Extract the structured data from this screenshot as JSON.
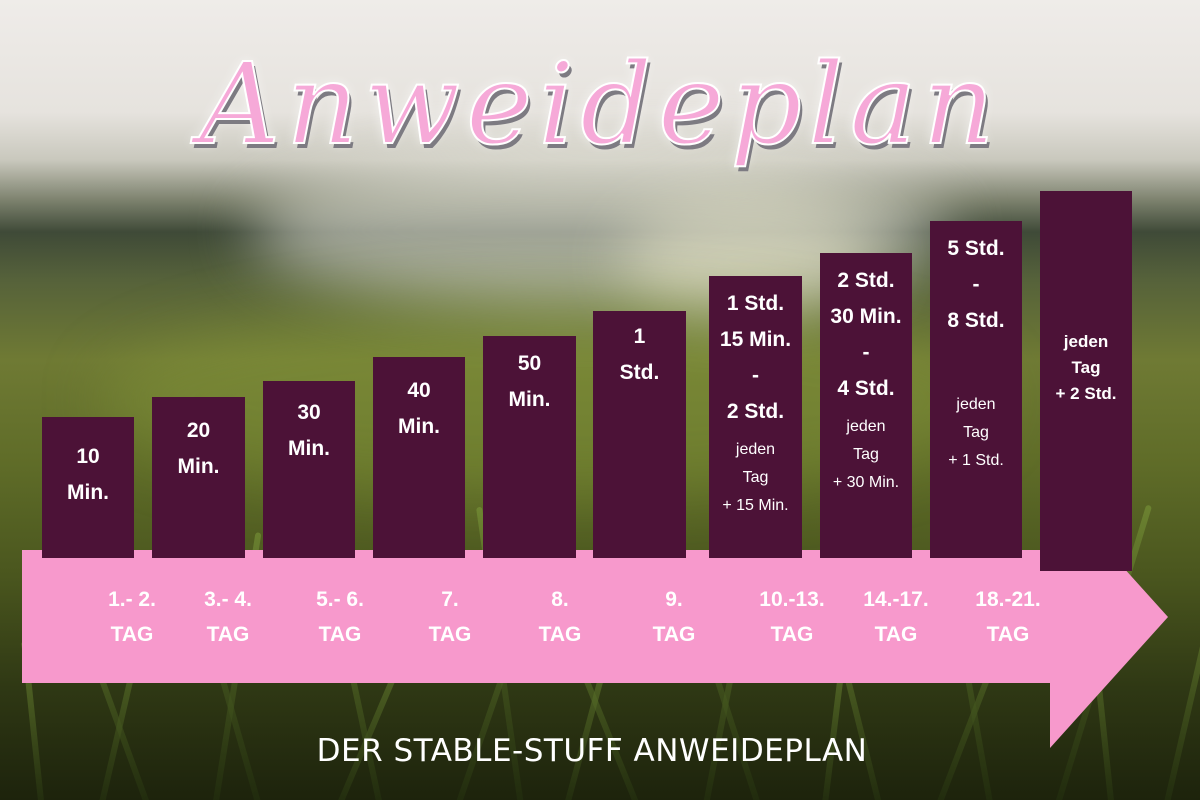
{
  "title": "Anweideplan",
  "footer": "DER STABLE-STUFF ANWEIDEPLAN",
  "colors": {
    "bar": "#4c1237",
    "arrow": "#f799cc",
    "text": "#ffffff",
    "title": "#f6a9d8"
  },
  "steps": [
    {
      "duration": [
        "10",
        "Min."
      ],
      "increment": [],
      "days": [
        "1.- 2.",
        "TAG"
      ]
    },
    {
      "duration": [
        "20",
        "Min."
      ],
      "increment": [],
      "days": [
        "3.- 4.",
        "TAG"
      ]
    },
    {
      "duration": [
        "30",
        "Min."
      ],
      "increment": [],
      "days": [
        "5.- 6.",
        "TAG"
      ]
    },
    {
      "duration": [
        "40",
        "Min."
      ],
      "increment": [],
      "days": [
        "7.",
        "TAG"
      ]
    },
    {
      "duration": [
        "50",
        "Min."
      ],
      "increment": [],
      "days": [
        "8.",
        "TAG"
      ]
    },
    {
      "duration": [
        "1",
        "Std."
      ],
      "increment": [],
      "days": [
        "9.",
        "TAG"
      ]
    },
    {
      "duration": [
        "1 Std.",
        "15 Min.",
        "-",
        "2 Std."
      ],
      "increment": [
        "jeden",
        "Tag",
        "+ 15 Min."
      ],
      "days": [
        "10.-13.",
        "TAG"
      ]
    },
    {
      "duration": [
        "2 Std.",
        "30 Min.",
        "-",
        "4 Std."
      ],
      "increment": [
        "jeden",
        "Tag",
        "+ 30 Min."
      ],
      "days": [
        "14.-17.",
        "TAG"
      ]
    },
    {
      "duration": [
        "5 Std.",
        "-",
        "8 Std."
      ],
      "increment": [
        "jeden",
        "Tag",
        "+ 1 Std."
      ],
      "days": [
        "18.-21.",
        "TAG"
      ]
    },
    {
      "duration": [],
      "increment": [
        "jeden",
        "Tag",
        "+ 2 Std."
      ],
      "days": []
    }
  ]
}
